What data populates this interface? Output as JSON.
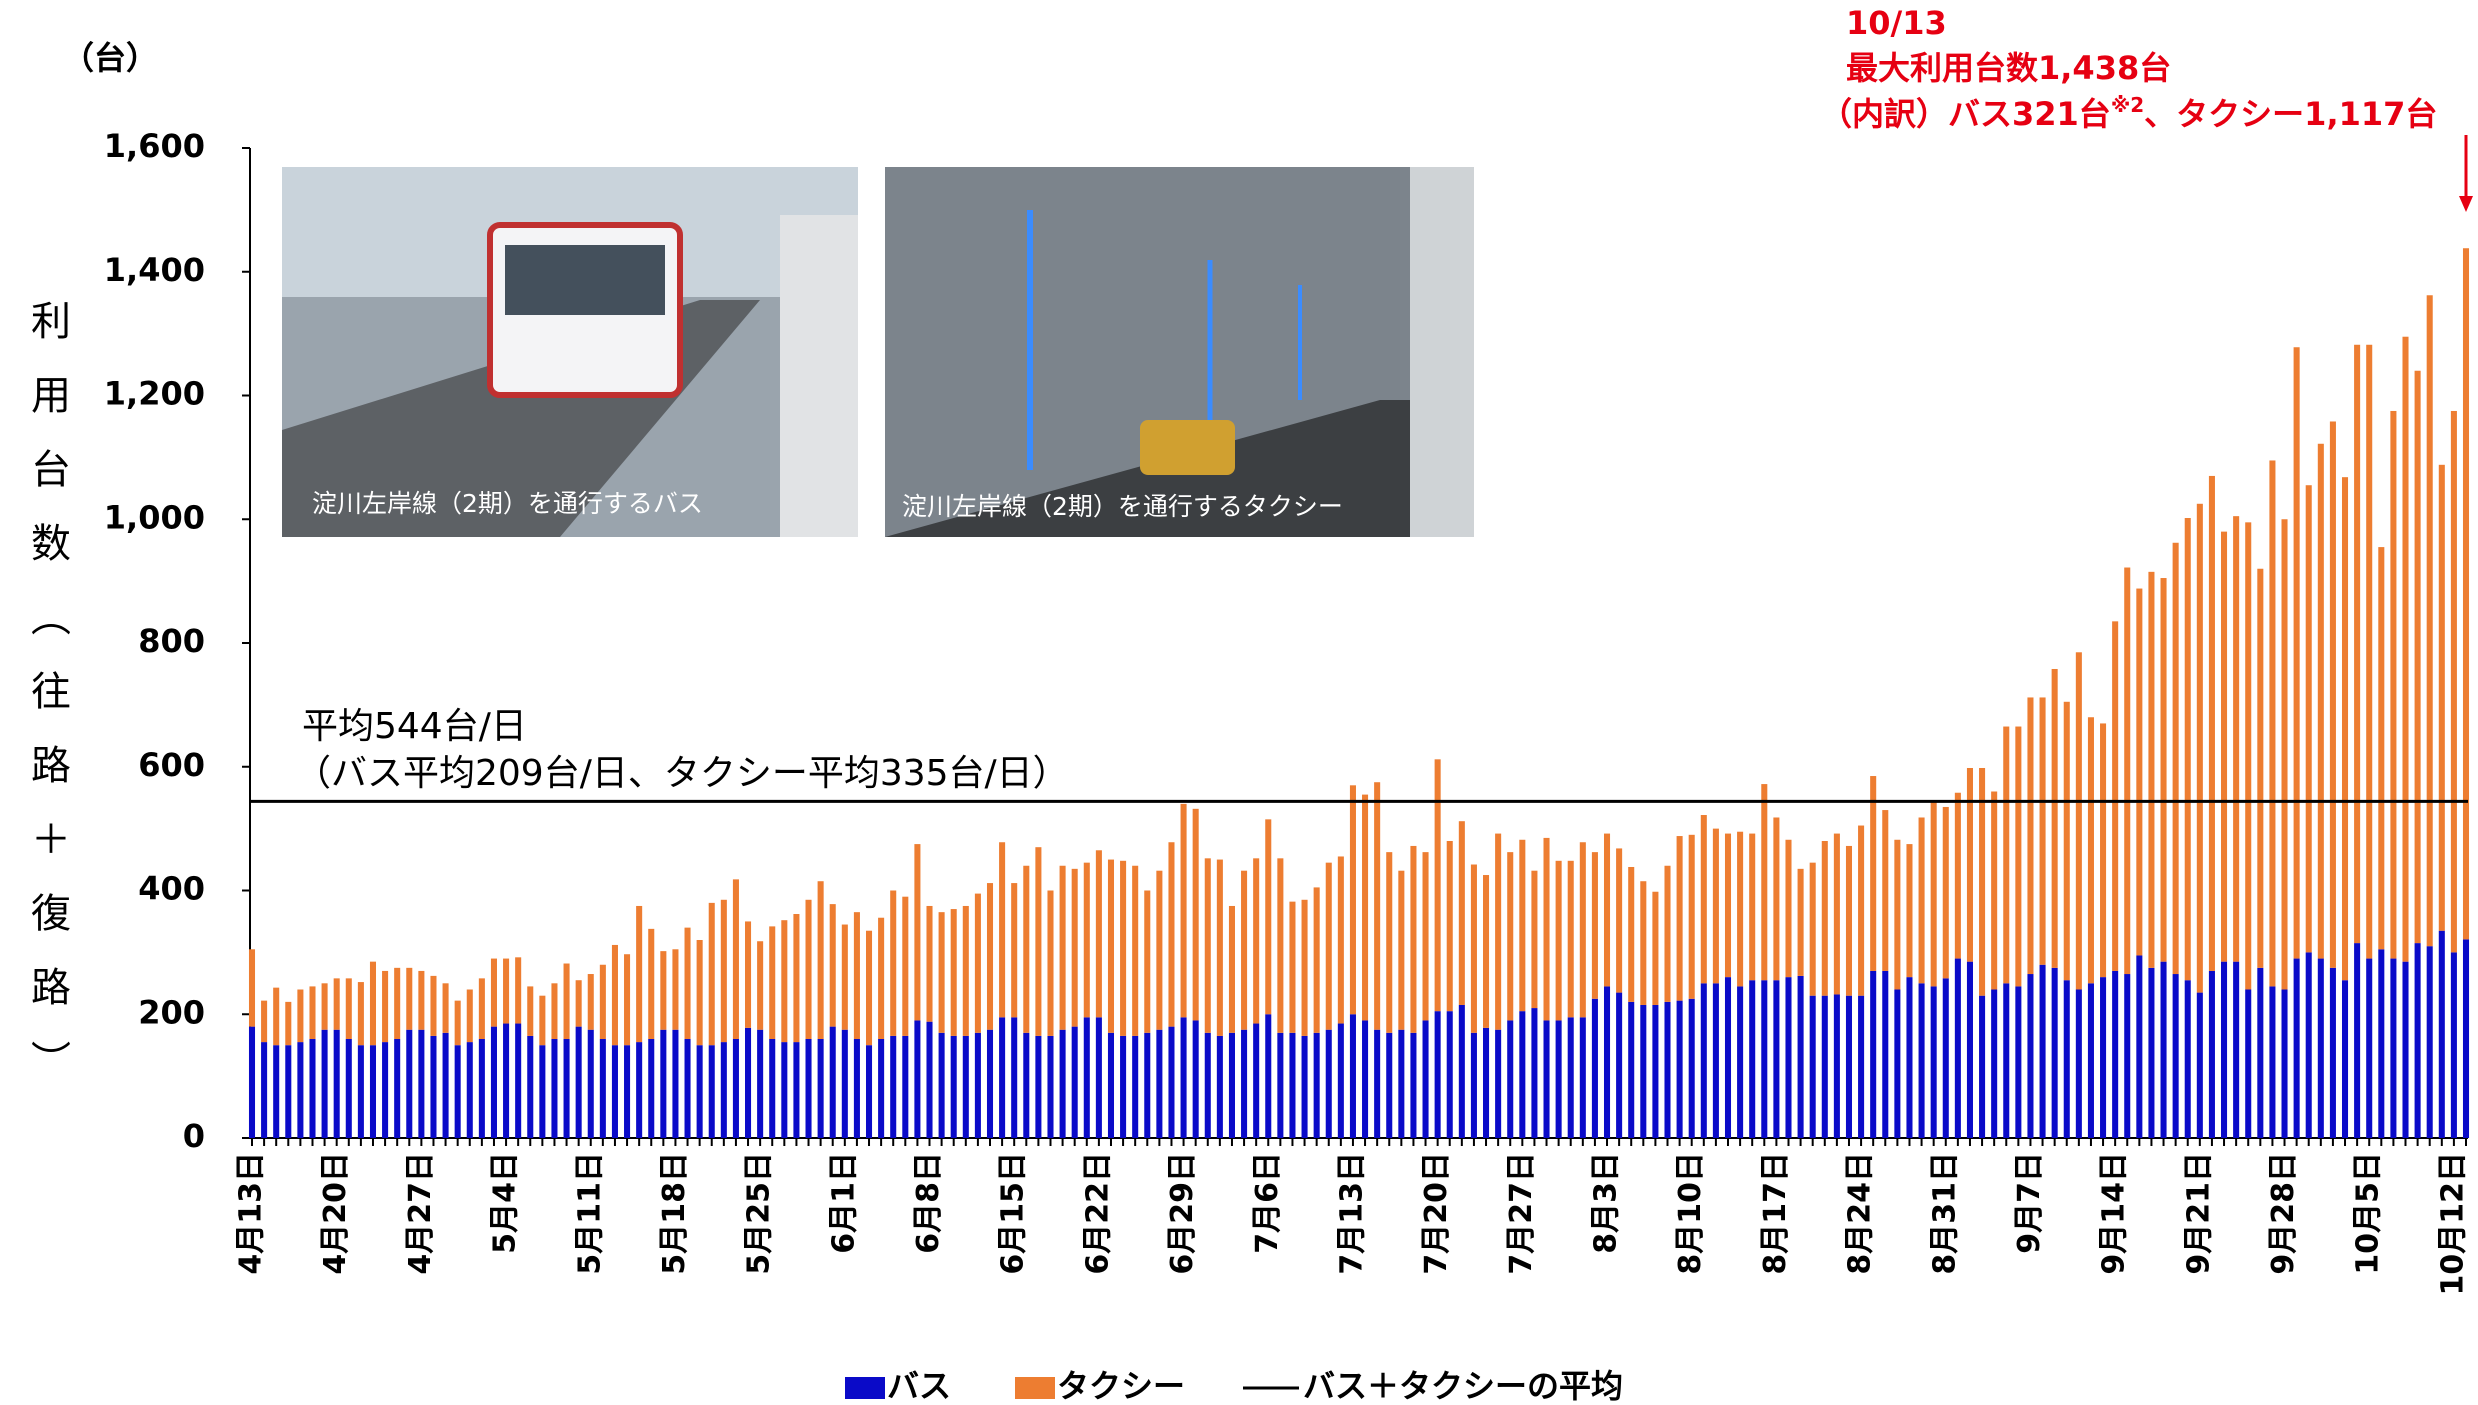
{
  "chart_data": {
    "type": "stacked-bar",
    "y_axis_unit": "（台）",
    "y_label": "利用台数（往路＋復路）",
    "ylim": [
      0,
      1600
    ],
    "yticks": [
      0,
      200,
      400,
      600,
      800,
      {
        "value": 1000,
        "label": "1,000"
      },
      {
        "value": 1200,
        "label": "1,200"
      },
      {
        "value": 1400,
        "label": "1,400"
      },
      {
        "value": 1600,
        "label": "1,600"
      }
    ],
    "grid": false,
    "categories": [
      "4月13日",
      null,
      null,
      null,
      null,
      null,
      null,
      "4月20日",
      null,
      null,
      null,
      null,
      null,
      null,
      "4月27日",
      null,
      null,
      null,
      null,
      null,
      null,
      "5月4日",
      null,
      null,
      null,
      null,
      null,
      null,
      "5月11日",
      null,
      null,
      null,
      null,
      null,
      null,
      "5月18日",
      null,
      null,
      null,
      null,
      null,
      null,
      "5月25日",
      null,
      null,
      null,
      null,
      null,
      null,
      "6月1日",
      null,
      null,
      null,
      null,
      null,
      null,
      "6月8日",
      null,
      null,
      null,
      null,
      null,
      null,
      "6月15日",
      null,
      null,
      null,
      null,
      null,
      null,
      "6月22日",
      null,
      null,
      null,
      null,
      null,
      null,
      "6月29日",
      null,
      null,
      null,
      null,
      null,
      null,
      "7月6日",
      null,
      null,
      null,
      null,
      null,
      null,
      "7月13日",
      null,
      null,
      null,
      null,
      null,
      null,
      "7月20日",
      null,
      null,
      null,
      null,
      null,
      null,
      "7月27日",
      null,
      null,
      null,
      null,
      null,
      null,
      "8月3日",
      null,
      null,
      null,
      null,
      null,
      null,
      "8月10日",
      null,
      null,
      null,
      null,
      null,
      null,
      "8月17日",
      null,
      null,
      null,
      null,
      null,
      null,
      "8月24日",
      null,
      null,
      null,
      null,
      null,
      null,
      "8月31日",
      null,
      null,
      null,
      null,
      null,
      null,
      "9月7日",
      null,
      null,
      null,
      null,
      null,
      null,
      "9月14日",
      null,
      null,
      null,
      null,
      null,
      null,
      "9月21日",
      null,
      null,
      null,
      null,
      null,
      null,
      "9月28日",
      null,
      null,
      null,
      null,
      null,
      null,
      "10月5日",
      null,
      null,
      null,
      null,
      null,
      null,
      "10月12日",
      null
    ],
    "series": [
      {
        "name": "バス",
        "color": "#0a0ac8",
        "values": [
          180,
          155,
          150,
          150,
          155,
          160,
          175,
          175,
          160,
          150,
          150,
          155,
          160,
          175,
          175,
          165,
          170,
          150,
          155,
          160,
          180,
          185,
          185,
          165,
          150,
          160,
          160,
          180,
          175,
          160,
          150,
          150,
          155,
          160,
          175,
          175,
          160,
          150,
          150,
          155,
          160,
          178,
          175,
          160,
          155,
          155,
          160,
          160,
          180,
          175,
          160,
          150,
          160,
          165,
          165,
          190,
          188,
          170,
          165,
          165,
          170,
          175,
          195,
          195,
          170,
          165,
          165,
          175,
          180,
          195,
          195,
          170,
          165,
          165,
          170,
          175,
          180,
          195,
          190,
          170,
          165,
          170,
          175,
          185,
          200,
          170,
          170,
          165,
          170,
          175,
          185,
          200,
          190,
          175,
          170,
          175,
          170,
          190,
          205,
          205,
          215,
          170,
          178,
          175,
          190,
          205,
          210,
          190,
          190,
          195,
          195,
          225,
          245,
          235,
          220,
          215,
          215,
          220,
          222,
          225,
          250,
          250,
          260,
          245,
          255,
          255,
          255,
          260,
          262,
          230,
          230,
          232,
          230,
          230,
          270,
          270,
          240,
          260,
          250,
          245,
          258,
          290,
          285,
          230,
          240,
          250,
          245,
          265,
          280,
          275,
          255,
          240,
          250,
          260,
          270,
          265,
          295,
          275,
          285,
          265,
          255,
          235,
          270,
          285,
          285,
          240,
          275,
          245,
          240,
          290,
          300,
          290,
          275,
          255,
          315,
          290,
          305,
          290,
          285,
          315,
          310,
          335,
          300,
          321
        ]
      },
      {
        "name": "タクシー",
        "color": "#ed7d31",
        "values": [
          125,
          67,
          93,
          70,
          85,
          85,
          75,
          83,
          98,
          102,
          135,
          115,
          115,
          100,
          95,
          97,
          80,
          72,
          85,
          98,
          110,
          105,
          107,
          80,
          80,
          90,
          122,
          75,
          90,
          120,
          162,
          147,
          220,
          178,
          127,
          130,
          180,
          170,
          230,
          230,
          258,
          172,
          143,
          182,
          197,
          207,
          225,
          255,
          198,
          170,
          205,
          185,
          196,
          235,
          225,
          285,
          187,
          195,
          205,
          210,
          225,
          237,
          283,
          217,
          270,
          305,
          235,
          265,
          255,
          250,
          270,
          280,
          283,
          275,
          230,
          257,
          298,
          345,
          342,
          282,
          285,
          205,
          257,
          267,
          315,
          282,
          212,
          220,
          235,
          270,
          270,
          370,
          365,
          400,
          292,
          257,
          302,
          272,
          407,
          275,
          297,
          272,
          247,
          317,
          272,
          277,
          222,
          295,
          258,
          253,
          283,
          237,
          247,
          233,
          218,
          200,
          183,
          220,
          266,
          265,
          272,
          250,
          232,
          250,
          237,
          317,
          263,
          222,
          173,
          215,
          250,
          260,
          242,
          275,
          315,
          260,
          242,
          215,
          268,
          300,
          277,
          268,
          313,
          368,
          320,
          415,
          420,
          447,
          432,
          483,
          450,
          545,
          430,
          410,
          565,
          657,
          593,
          640,
          620,
          697,
          747,
          790,
          800,
          695,
          720,
          755,
          645,
          850,
          760,
          988,
          755,
          832,
          883,
          813,
          967,
          992,
          650,
          885,
          1010,
          925,
          1052,
          753,
          875,
          1117
        ]
      }
    ],
    "average": {
      "name": "バス＋タクシーの平均",
      "value": 544,
      "color": "#000000",
      "label": "平均544台/日",
      "sublabel": "（バス平均209台/日、タクシー平均335台/日）"
    },
    "annotation": {
      "date": "10/13",
      "line1": "最大利用台数1,438台",
      "line2a": "（内訳）バス321台",
      "line2b": "※2",
      "line2c": "、タクシー1,117台",
      "color": "#e60012"
    },
    "photos": [
      {
        "caption": "淀川左岸線（2期）を通行するバス"
      },
      {
        "caption": "淀川左岸線（2期）を通行するタクシー"
      }
    ]
  }
}
